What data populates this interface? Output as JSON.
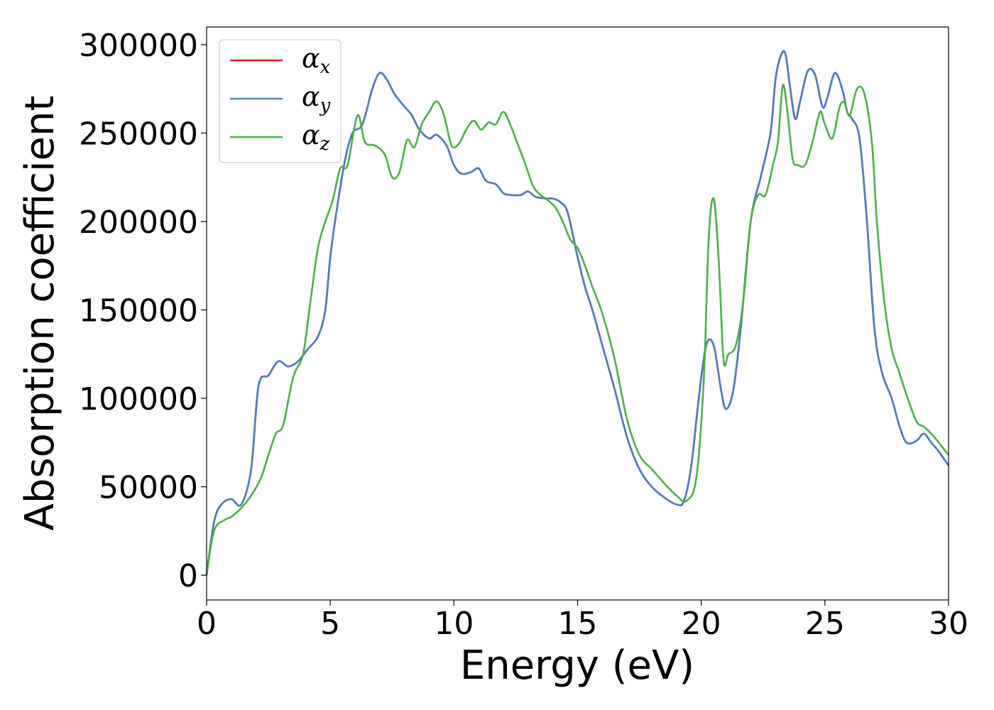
{
  "chart_data": {
    "type": "line",
    "title": "",
    "xlabel": "Energy (eV)",
    "ylabel": "Absorption coefficient",
    "xlim": [
      0,
      30
    ],
    "ylim": [
      -14000,
      310000
    ],
    "xticks": [
      0,
      5,
      10,
      15,
      20,
      25,
      30
    ],
    "yticks": [
      0,
      50000,
      100000,
      150000,
      200000,
      250000,
      300000
    ],
    "grid": false,
    "legend_position": "top-left",
    "series": [
      {
        "name": "α_x",
        "legend_base": "α",
        "legend_sub": "x",
        "color": "#e41a1c",
        "x": [
          0,
          0.3,
          0.6,
          1.0,
          1.4,
          1.8,
          2.1,
          2.5,
          2.9,
          3.3,
          3.7,
          4.1,
          4.5,
          4.8,
          5.0,
          5.3,
          5.6,
          5.9,
          6.3,
          6.7,
          7.0,
          7.3,
          7.6,
          8.0,
          8.3,
          8.6,
          9.0,
          9.3,
          9.7,
          10.0,
          10.3,
          10.7,
          11.0,
          11.3,
          11.7,
          12.0,
          12.3,
          12.7,
          13.0,
          13.3,
          13.7,
          14.0,
          14.3,
          14.6,
          15.0,
          15.3,
          15.6,
          16.0,
          16.5,
          17.0,
          17.5,
          18.0,
          18.5,
          19.0,
          19.3,
          19.6,
          19.9,
          20.2,
          20.5,
          20.8,
          21.0,
          21.3,
          21.6,
          22.0,
          22.4,
          22.8,
          23.0,
          23.2,
          23.4,
          23.6,
          23.8,
          24.0,
          24.3,
          24.6,
          24.9,
          25.1,
          25.4,
          25.7,
          25.9,
          26.1,
          26.4,
          26.7,
          27.0,
          27.3,
          27.7,
          28.0,
          28.3,
          28.7,
          29.0,
          29.3,
          29.6,
          30.0
        ],
        "values": [
          0,
          30000,
          40000,
          43000,
          40000,
          60000,
          107000,
          113000,
          121000,
          118000,
          121000,
          128000,
          135000,
          150000,
          180000,
          210000,
          235000,
          250000,
          255000,
          275000,
          284000,
          280000,
          272000,
          265000,
          260000,
          252000,
          247000,
          249000,
          243000,
          232000,
          227000,
          228000,
          230000,
          223000,
          221000,
          216000,
          215000,
          215000,
          217000,
          214000,
          213000,
          213000,
          211000,
          205000,
          180000,
          163000,
          150000,
          130000,
          105000,
          78000,
          60000,
          50000,
          44000,
          40000,
          42000,
          62000,
          100000,
          130000,
          130000,
          105000,
          94000,
          105000,
          140000,
          200000,
          225000,
          250000,
          280000,
          293000,
          295000,
          275000,
          258000,
          268000,
          285000,
          283000,
          265000,
          270000,
          284000,
          275000,
          262000,
          258000,
          247000,
          200000,
          140000,
          115000,
          100000,
          85000,
          75000,
          76000,
          80000,
          75000,
          70000,
          62000
        ]
      },
      {
        "name": "α_y",
        "legend_base": "α",
        "legend_sub": "y",
        "color": "#4a7fbd",
        "x": [
          0,
          0.3,
          0.6,
          1.0,
          1.4,
          1.8,
          2.1,
          2.5,
          2.9,
          3.3,
          3.7,
          4.1,
          4.5,
          4.8,
          5.0,
          5.3,
          5.6,
          5.9,
          6.3,
          6.7,
          7.0,
          7.3,
          7.6,
          8.0,
          8.3,
          8.6,
          9.0,
          9.3,
          9.7,
          10.0,
          10.3,
          10.7,
          11.0,
          11.3,
          11.7,
          12.0,
          12.3,
          12.7,
          13.0,
          13.3,
          13.7,
          14.0,
          14.3,
          14.6,
          15.0,
          15.3,
          15.6,
          16.0,
          16.5,
          17.0,
          17.5,
          18.0,
          18.5,
          19.0,
          19.3,
          19.6,
          19.9,
          20.2,
          20.5,
          20.8,
          21.0,
          21.3,
          21.6,
          22.0,
          22.4,
          22.8,
          23.0,
          23.2,
          23.4,
          23.6,
          23.8,
          24.0,
          24.3,
          24.6,
          24.9,
          25.1,
          25.4,
          25.7,
          25.9,
          26.1,
          26.4,
          26.7,
          27.0,
          27.3,
          27.7,
          28.0,
          28.3,
          28.7,
          29.0,
          29.3,
          29.6,
          30.0
        ],
        "values": [
          0,
          30000,
          40000,
          43000,
          40000,
          60000,
          107000,
          113000,
          121000,
          118000,
          121000,
          128000,
          135000,
          150000,
          180000,
          210000,
          235000,
          250000,
          255000,
          275000,
          284000,
          280000,
          272000,
          265000,
          260000,
          252000,
          247000,
          249000,
          243000,
          232000,
          227000,
          228000,
          230000,
          223000,
          221000,
          216000,
          215000,
          215000,
          217000,
          214000,
          213000,
          213000,
          211000,
          205000,
          180000,
          163000,
          150000,
          130000,
          105000,
          78000,
          60000,
          50000,
          44000,
          40000,
          42000,
          62000,
          100000,
          130000,
          130000,
          105000,
          94000,
          105000,
          140000,
          200000,
          225000,
          250000,
          280000,
          293000,
          295000,
          275000,
          258000,
          268000,
          285000,
          283000,
          265000,
          270000,
          284000,
          275000,
          262000,
          258000,
          247000,
          200000,
          140000,
          115000,
          100000,
          85000,
          75000,
          76000,
          80000,
          75000,
          70000,
          62000
        ]
      },
      {
        "name": "α_z",
        "legend_base": "α",
        "legend_sub": "z",
        "color": "#4daf4a",
        "x": [
          0,
          0.3,
          0.7,
          1.0,
          1.4,
          1.8,
          2.2,
          2.5,
          2.8,
          3.1,
          3.5,
          3.9,
          4.2,
          4.5,
          4.8,
          5.1,
          5.4,
          5.7,
          6.1,
          6.4,
          6.8,
          7.2,
          7.5,
          7.8,
          8.1,
          8.4,
          8.7,
          9.0,
          9.3,
          9.6,
          9.9,
          10.2,
          10.5,
          10.8,
          11.1,
          11.4,
          11.7,
          12.0,
          12.3,
          12.6,
          12.9,
          13.2,
          13.5,
          13.8,
          14.1,
          14.4,
          14.7,
          15.0,
          15.3,
          15.6,
          16.0,
          16.5,
          17.0,
          17.5,
          18.0,
          18.5,
          19.0,
          19.4,
          19.8,
          20.1,
          20.3,
          20.5,
          20.7,
          20.9,
          21.1,
          21.4,
          21.7,
          22.0,
          22.3,
          22.6,
          22.9,
          23.1,
          23.3,
          23.5,
          23.7,
          23.9,
          24.2,
          24.5,
          24.8,
          25.0,
          25.3,
          25.6,
          25.8,
          26.0,
          26.3,
          26.6,
          26.9,
          27.1,
          27.4,
          27.7,
          28.0,
          28.3,
          28.7,
          29.0,
          29.3,
          29.6,
          30.0
        ],
        "values": [
          0,
          25000,
          31000,
          33000,
          38000,
          45000,
          55000,
          68000,
          80000,
          85000,
          112000,
          125000,
          155000,
          185000,
          200000,
          212000,
          230000,
          232000,
          260000,
          245000,
          243000,
          238000,
          225000,
          228000,
          246000,
          242000,
          255000,
          262000,
          268000,
          260000,
          243000,
          244000,
          252000,
          257000,
          252000,
          256000,
          255000,
          262000,
          254000,
          243000,
          232000,
          220000,
          215000,
          212000,
          208000,
          200000,
          190000,
          185000,
          175000,
          163000,
          148000,
          122000,
          88000,
          68000,
          60000,
          52000,
          45000,
          42000,
          55000,
          110000,
          190000,
          213000,
          180000,
          122000,
          125000,
          130000,
          155000,
          200000,
          215000,
          215000,
          232000,
          245000,
          277000,
          260000,
          235000,
          232000,
          232000,
          245000,
          262000,
          255000,
          247000,
          265000,
          267000,
          260000,
          275000,
          272000,
          245000,
          200000,
          155000,
          128000,
          115000,
          102000,
          87000,
          84000,
          80000,
          75000,
          68000
        ]
      }
    ]
  }
}
